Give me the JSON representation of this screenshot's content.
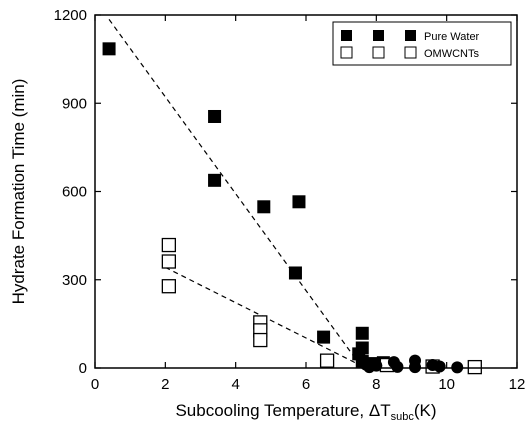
{
  "chart_data": {
    "type": "scatter",
    "xlabel_main": "Subcooling Temperature, ΔT",
    "xlabel_sub": "subc",
    "xlabel_tail": "(K)",
    "ylabel": "Hydrate Formation Time (min)",
    "xlim": [
      0,
      12
    ],
    "ylim": [
      0,
      1200
    ],
    "x_ticks": [
      0,
      2,
      4,
      6,
      8,
      10,
      12
    ],
    "y_ticks": [
      0,
      300,
      600,
      900,
      1200
    ],
    "legend_position": "top-right",
    "series": [
      {
        "name": "Pure Water",
        "marker": "filled-square",
        "color": "#000000",
        "points": [
          [
            0.4,
            1085
          ],
          [
            3.4,
            855
          ],
          [
            3.4,
            638
          ],
          [
            4.8,
            548
          ],
          [
            5.8,
            565
          ],
          [
            5.7,
            323
          ],
          [
            6.5,
            105
          ],
          [
            7.6,
            118
          ],
          [
            7.6,
            68
          ],
          [
            7.5,
            48
          ],
          [
            7.6,
            22
          ],
          [
            7.9,
            15
          ],
          [
            8.2,
            18
          ],
          [
            8.4,
            12
          ]
        ]
      },
      {
        "name": "OMWCNTs",
        "marker": "open-square",
        "color": "#000000",
        "points": [
          [
            2.1,
            418
          ],
          [
            2.1,
            362
          ],
          [
            2.1,
            278
          ],
          [
            4.7,
            155
          ],
          [
            4.7,
            128
          ],
          [
            4.7,
            95
          ],
          [
            6.6,
            25
          ],
          [
            8.3,
            10
          ],
          [
            9.6,
            5
          ],
          [
            10.8,
            3
          ]
        ]
      },
      {
        "name": "",
        "marker": "filled-circle",
        "color": "#000000",
        "points": [
          [
            7.7,
            12
          ],
          [
            8.0,
            8
          ],
          [
            8.5,
            20
          ],
          [
            9.1,
            25
          ],
          [
            9.1,
            3
          ],
          [
            9.6,
            10
          ],
          [
            9.8,
            5
          ],
          [
            10.3,
            2
          ],
          [
            7.8,
            3
          ],
          [
            8.6,
            4
          ]
        ]
      }
    ],
    "trend_lines": [
      {
        "points": [
          [
            0.4,
            1185
          ],
          [
            7.6,
            0
          ]
        ]
      },
      {
        "points": [
          [
            2.0,
            342
          ],
          [
            7.7,
            0
          ]
        ]
      }
    ]
  }
}
